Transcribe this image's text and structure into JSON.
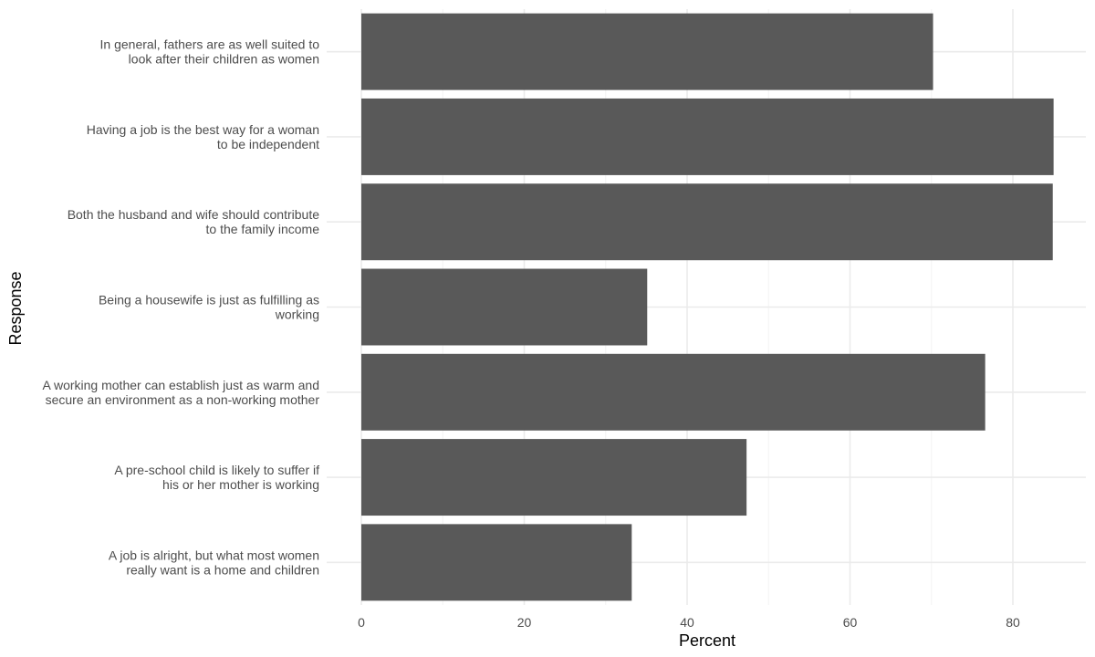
{
  "chart_data": {
    "type": "bar",
    "orientation": "horizontal",
    "title": "",
    "xlabel": "Percent",
    "ylabel": "Response",
    "xlim": [
      0,
      89
    ],
    "x_ticks": [
      0,
      20,
      40,
      60,
      80
    ],
    "grid": true,
    "legend": "none",
    "bar_color": "#595959",
    "categories": [
      {
        "label": "In general, fathers are as well suited to look after their children as women",
        "lines": [
          "In general, fathers are as well suited to",
          "look after their children as women"
        ],
        "value": 70.2
      },
      {
        "label": "Having a job is the best way for a woman to be independent",
        "lines": [
          "Having a job is the best way for a woman",
          "to be independent"
        ],
        "value": 85
      },
      {
        "label": "Both the husband and wife should contribute to the family income",
        "lines": [
          "Both the husband and wife should contribute",
          "to the family income"
        ],
        "value": 84.9
      },
      {
        "label": "Being a housewife is just as fulfilling as working",
        "lines": [
          "Being a housewife is just as fulfilling as",
          "working"
        ],
        "value": 35.1
      },
      {
        "label": "A working mother can establish just as warm and secure an environment as a non-working mother",
        "lines": [
          "A working mother can establish just as warm and",
          "secure an environment as a non-working mother"
        ],
        "value": 76.6
      },
      {
        "label": "A pre-school child is likely to suffer if his or her mother is working",
        "lines": [
          "A pre-school child is likely to suffer if",
          "his or her mother is working"
        ],
        "value": 47.3
      },
      {
        "label": "A job is alright, but what most women really want is a home and children",
        "lines": [
          "A job is alright, but what most women",
          "really want is a home and children"
        ],
        "value": 33.2
      }
    ]
  }
}
